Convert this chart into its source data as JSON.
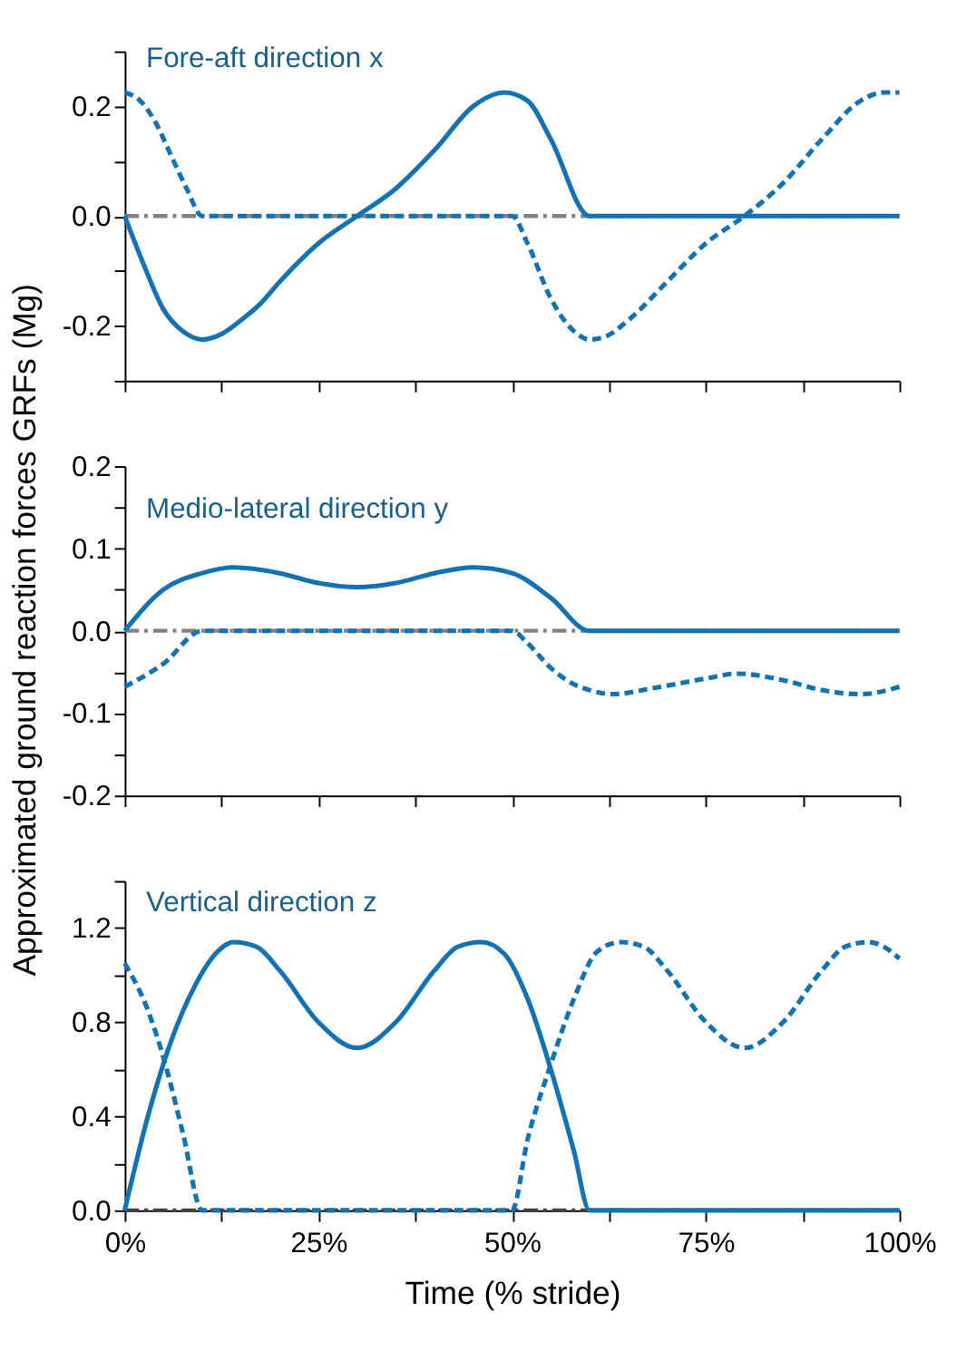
{
  "chart_data": [
    {
      "type": "line",
      "title": "Fore-aft direction x",
      "xlim": [
        0,
        100
      ],
      "ylim": [
        -0.3,
        0.3
      ],
      "xticks": [
        {
          "value": 0,
          "label": null
        },
        {
          "value": 12.5,
          "label": null
        },
        {
          "value": 25,
          "label": null
        },
        {
          "value": 37.5,
          "label": null
        },
        {
          "value": 50,
          "label": null
        },
        {
          "value": 62.5,
          "label": null
        },
        {
          "value": 75,
          "label": null
        },
        {
          "value": 87.5,
          "label": null
        },
        {
          "value": 100,
          "label": null
        }
      ],
      "yticks": [
        {
          "value": -0.3,
          "label": null
        },
        -0.2,
        {
          "value": -0.1,
          "label": null
        },
        {
          "value": 0,
          "label": "0.0"
        },
        {
          "value": 0.1,
          "label": null
        },
        0.2,
        {
          "value": 0.3,
          "label": null
        }
      ],
      "tick_labels": "y",
      "grid": false,
      "ref_lines": [
        {
          "axis": "y",
          "value": 0,
          "color": "#808080",
          "line_style": "dashdot"
        }
      ],
      "series": [
        {
          "color": "#1372b3",
          "line_style": "solid",
          "x": [
            0,
            2.5,
            5,
            7.5,
            10,
            12.5,
            15,
            17.5,
            20,
            25,
            30,
            35,
            40,
            45,
            49,
            52,
            55,
            60,
            100
          ],
          "values": [
            0,
            -0.09,
            -0.17,
            -0.21,
            -0.225,
            -0.215,
            -0.19,
            -0.16,
            -0.12,
            -0.05,
            0.0,
            0.05,
            0.12,
            0.2,
            0.225,
            0.21,
            0.14,
            0,
            0
          ]
        },
        {
          "color": "#1372b3",
          "line_style": "dashed",
          "x": [
            0,
            2,
            4,
            6,
            8,
            10,
            50,
            52,
            55,
            58,
            60,
            62,
            65,
            70,
            75,
            80,
            85,
            90,
            95,
            98,
            100
          ],
          "values": [
            0.225,
            0.21,
            0.17,
            0.11,
            0.05,
            0,
            0,
            -0.05,
            -0.15,
            -0.21,
            -0.225,
            -0.22,
            -0.19,
            -0.12,
            -0.05,
            0.0,
            0.06,
            0.14,
            0.21,
            0.225,
            0.225
          ]
        }
      ]
    },
    {
      "type": "line",
      "title": "Medio-lateral direction y",
      "ylabel": "Approximated ground reaction forces GRFs (Mg)",
      "xlim": [
        0,
        100
      ],
      "ylim": [
        -0.2,
        0.2
      ],
      "xticks": [
        {
          "value": 0,
          "label": null
        },
        {
          "value": 12.5,
          "label": null
        },
        {
          "value": 25,
          "label": null
        },
        {
          "value": 37.5,
          "label": null
        },
        {
          "value": 50,
          "label": null
        },
        {
          "value": 62.5,
          "label": null
        },
        {
          "value": 75,
          "label": null
        },
        {
          "value": 87.5,
          "label": null
        },
        {
          "value": 100,
          "label": null
        }
      ],
      "yticks": [
        -0.2,
        {
          "value": -0.15,
          "label": null
        },
        -0.1,
        {
          "value": -0.05,
          "label": null
        },
        {
          "value": 0,
          "label": "0.0"
        },
        {
          "value": 0.05,
          "label": null
        },
        0.1,
        {
          "value": 0.15,
          "label": null
        },
        0.2
      ],
      "tick_labels": "y",
      "grid": false,
      "ref_lines": [
        {
          "axis": "y",
          "value": 0,
          "color": "#808080",
          "line_style": "dashdot"
        }
      ],
      "series": [
        {
          "color": "#1372b3",
          "line_style": "solid",
          "x": [
            0,
            5,
            10,
            14,
            20,
            25,
            30,
            35,
            40,
            45,
            50,
            55,
            60,
            100
          ],
          "values": [
            0,
            0.05,
            0.07,
            0.077,
            0.07,
            0.058,
            0.053,
            0.058,
            0.07,
            0.077,
            0.07,
            0.04,
            0,
            0
          ]
        },
        {
          "color": "#1372b3",
          "line_style": "dashed",
          "x": [
            0,
            5,
            10,
            50,
            52,
            55,
            58,
            60,
            63,
            68,
            75,
            79,
            85,
            90,
            95,
            100
          ],
          "values": [
            -0.068,
            -0.04,
            0,
            0,
            -0.015,
            -0.045,
            -0.065,
            -0.072,
            -0.077,
            -0.07,
            -0.058,
            -0.052,
            -0.06,
            -0.072,
            -0.077,
            -0.068
          ]
        }
      ]
    },
    {
      "type": "line",
      "title": "Vertical direction z",
      "xlabel": "Time (% stride)",
      "xlim": [
        0,
        100
      ],
      "ylim": [
        0,
        1.4
      ],
      "xticks": [
        {
          "value": 0,
          "label": "0%"
        },
        {
          "value": 12.5,
          "label": null
        },
        {
          "value": 25,
          "label": "25%"
        },
        {
          "value": 37.5,
          "label": null
        },
        {
          "value": 50,
          "label": "50%"
        },
        {
          "value": 62.5,
          "label": null
        },
        {
          "value": 75,
          "label": "75%"
        },
        {
          "value": 87.5,
          "label": null
        },
        {
          "value": 100,
          "label": "100%"
        }
      ],
      "yticks": [
        {
          "value": 0,
          "label": "0.0"
        },
        {
          "value": 0.2,
          "label": null
        },
        0.4,
        {
          "value": 0.6,
          "label": null
        },
        0.8,
        {
          "value": 1.0,
          "label": null
        },
        1.2,
        {
          "value": 1.4,
          "label": null
        }
      ],
      "grid": false,
      "ref_lines": [
        {
          "axis": "y",
          "value": 0,
          "color": "#404040",
          "line_style": "dashdot"
        }
      ],
      "series": [
        {
          "color": "#1372b3",
          "line_style": "solid",
          "x": [
            0,
            3,
            6,
            9,
            12,
            14,
            17,
            20,
            25,
            30,
            35,
            40,
            43,
            46,
            49,
            52,
            55,
            58,
            60,
            100
          ],
          "values": [
            0,
            0.4,
            0.72,
            0.95,
            1.1,
            1.14,
            1.12,
            1.02,
            0.8,
            0.69,
            0.8,
            1.02,
            1.12,
            1.14,
            1.09,
            0.9,
            0.6,
            0.25,
            0,
            0
          ]
        },
        {
          "color": "#1372b3",
          "line_style": "dashed",
          "x": [
            0,
            3,
            5,
            7.5,
            10,
            50,
            52,
            55,
            58,
            61,
            64,
            67,
            70,
            75,
            80,
            85,
            90,
            93,
            96,
            98,
            100
          ],
          "values": [
            1.05,
            0.85,
            0.65,
            0.33,
            0,
            0,
            0.3,
            0.62,
            0.9,
            1.1,
            1.14,
            1.12,
            1.02,
            0.8,
            0.69,
            0.8,
            1.02,
            1.12,
            1.14,
            1.12,
            1.07
          ]
        }
      ]
    }
  ]
}
